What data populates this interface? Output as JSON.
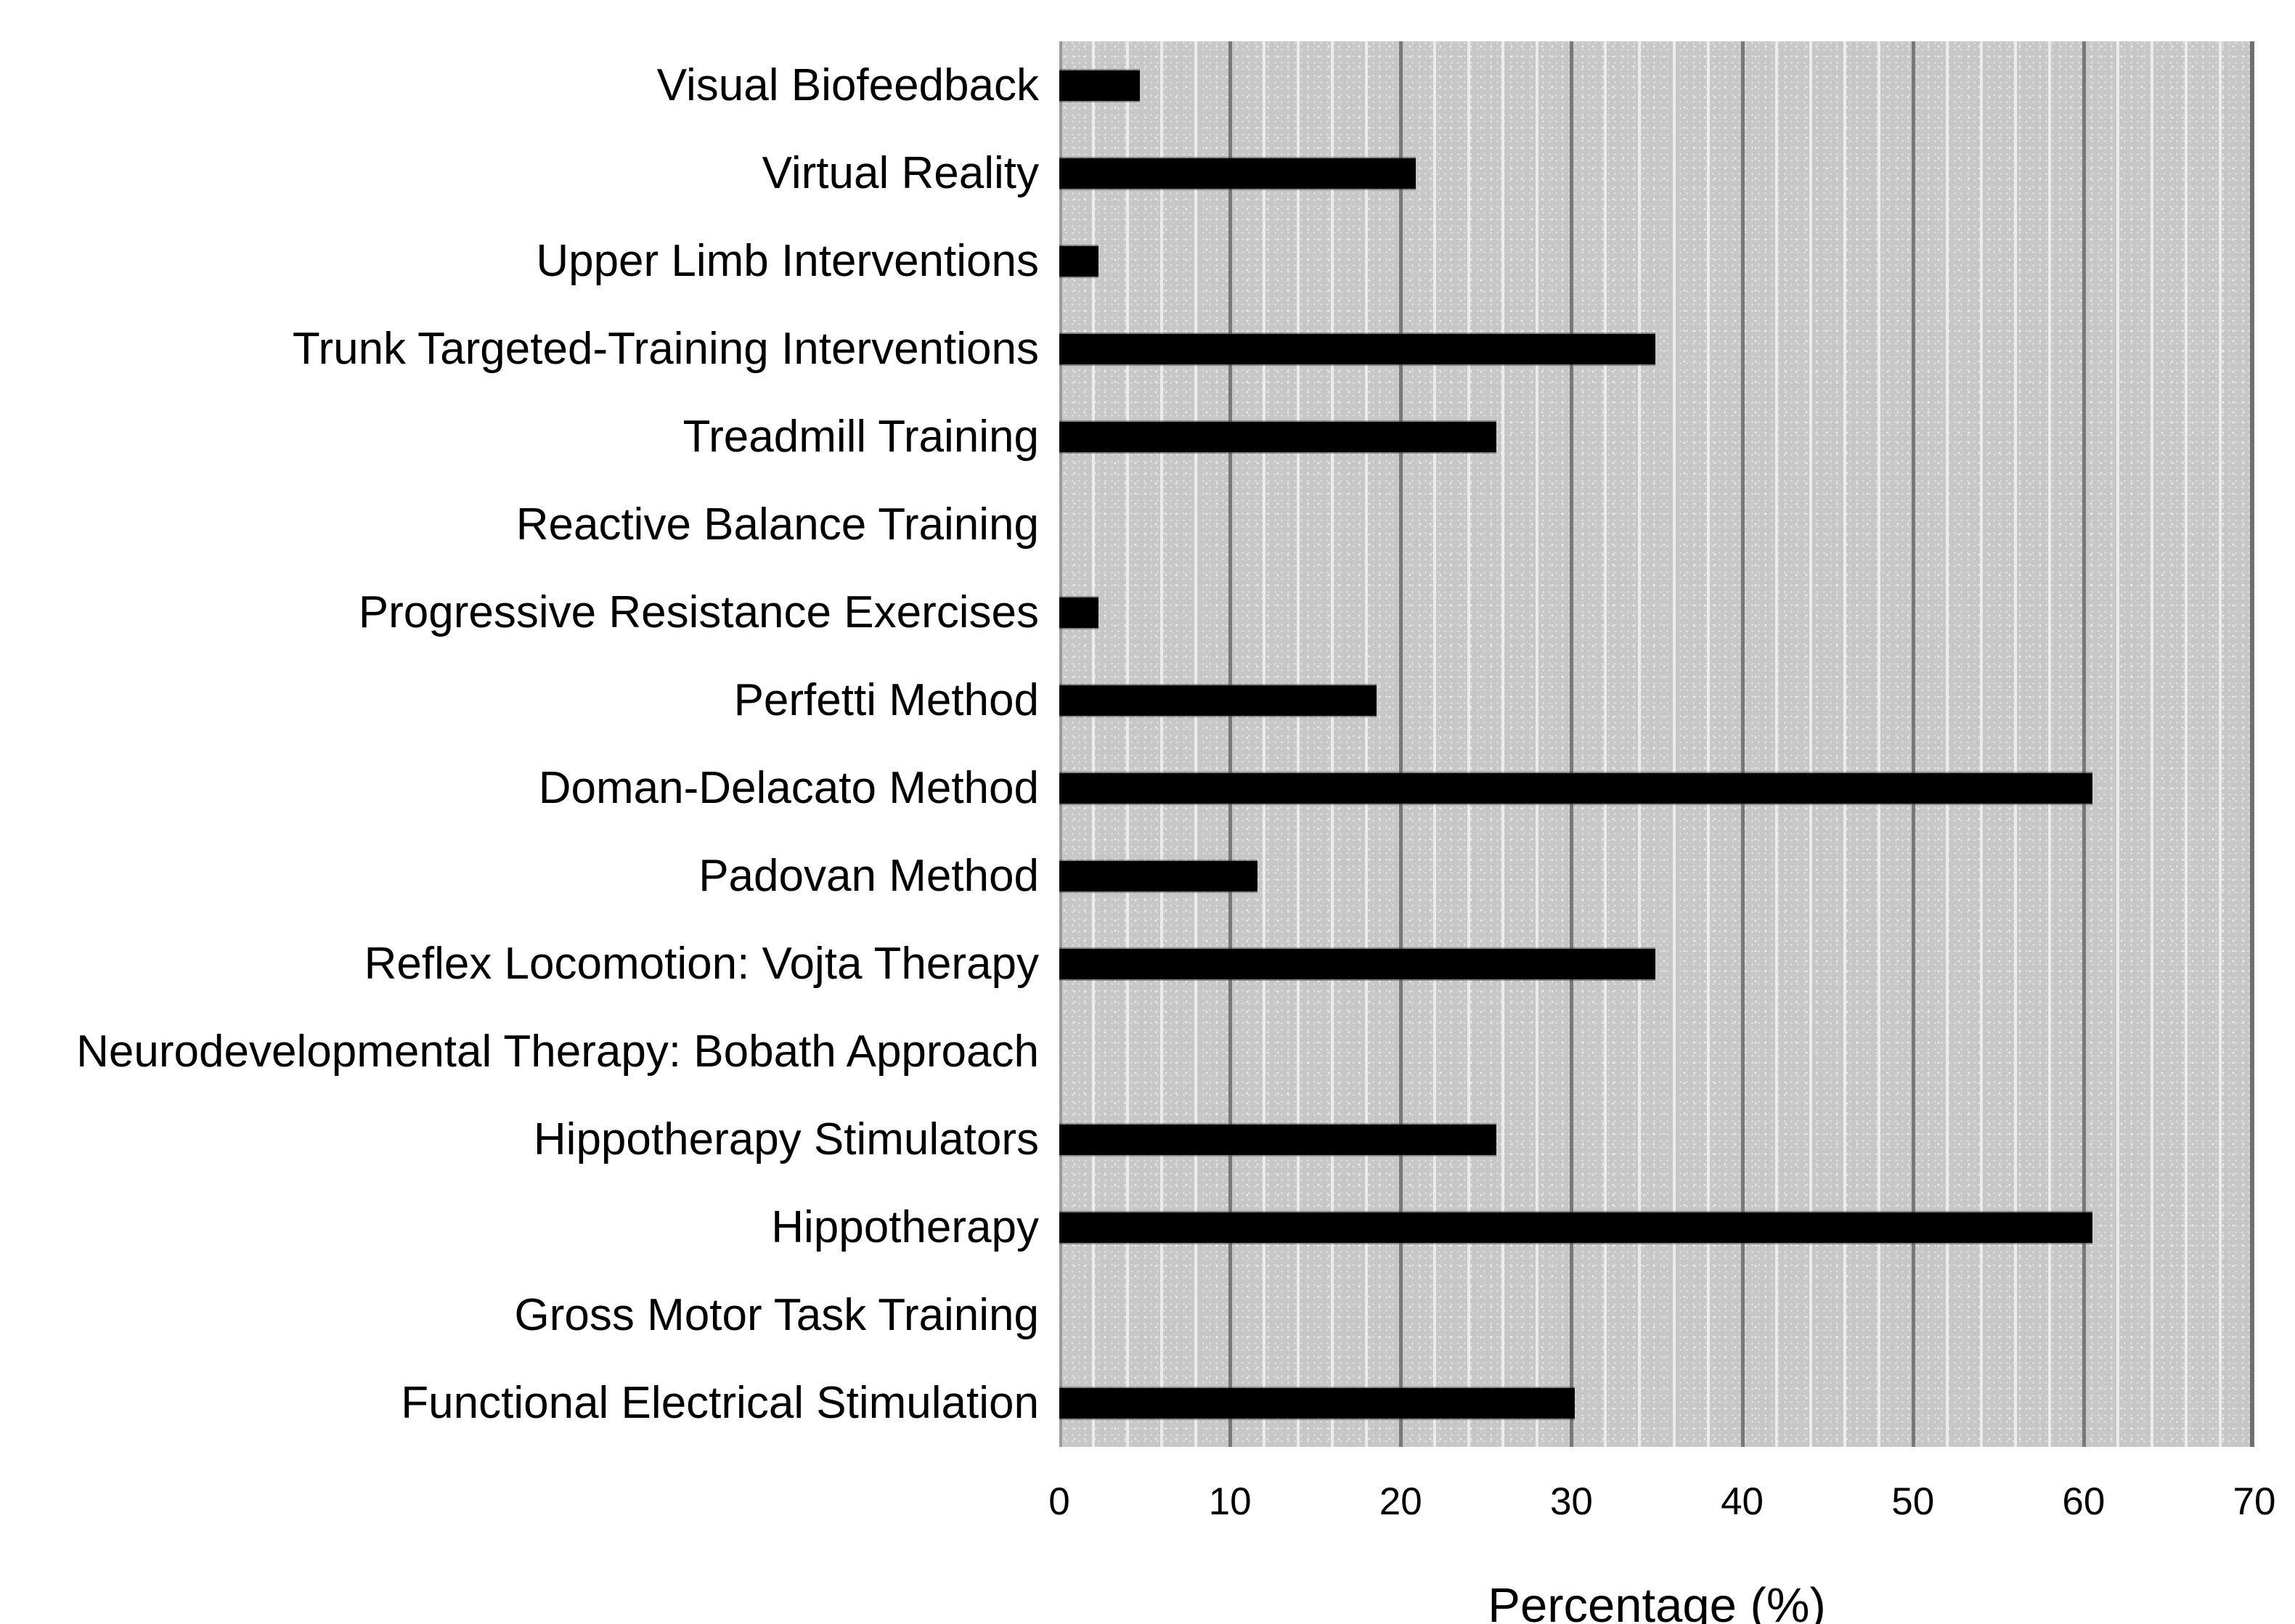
{
  "chart_data": {
    "type": "bar",
    "orientation": "horizontal",
    "title": "",
    "xlabel": "Percentage (%)",
    "ylabel": "",
    "categories": [
      "Visual Biofeedback",
      "Virtual Reality",
      "Upper Limb Interventions",
      "Trunk Targeted-Training Interventions",
      "Treadmill Training",
      "Reactive Balance Training",
      "Progressive Resistance Exercises",
      "Perfetti Method",
      "Doman-Delacato Method",
      "Padovan Method",
      "Reflex Locomotion: Vojta Therapy",
      "Neurodevelopmental Therapy: Bobath Approach",
      "Hippotherapy Stimulators",
      "Hippotherapy",
      "Gross Motor Task Training",
      "Functional Electrical Stimulation"
    ],
    "values": [
      4.7,
      20.9,
      2.3,
      34.9,
      25.6,
      0,
      2.3,
      18.6,
      60.5,
      11.6,
      34.9,
      0,
      25.6,
      60.5,
      0,
      30.2
    ],
    "xlim": [
      0,
      70
    ],
    "x_ticks": [
      0,
      10,
      20,
      30,
      40,
      50,
      60,
      70
    ],
    "minor_grid_step": 2,
    "major_grid_step": 10,
    "grid": "vertical",
    "legend": "none",
    "colors": {
      "bar": "#000000",
      "plot_background": "#c7c7c7",
      "grid_minor": "#ececec",
      "grid_major": "#787878",
      "page_background": "#ffffff",
      "text": "#000000"
    }
  }
}
